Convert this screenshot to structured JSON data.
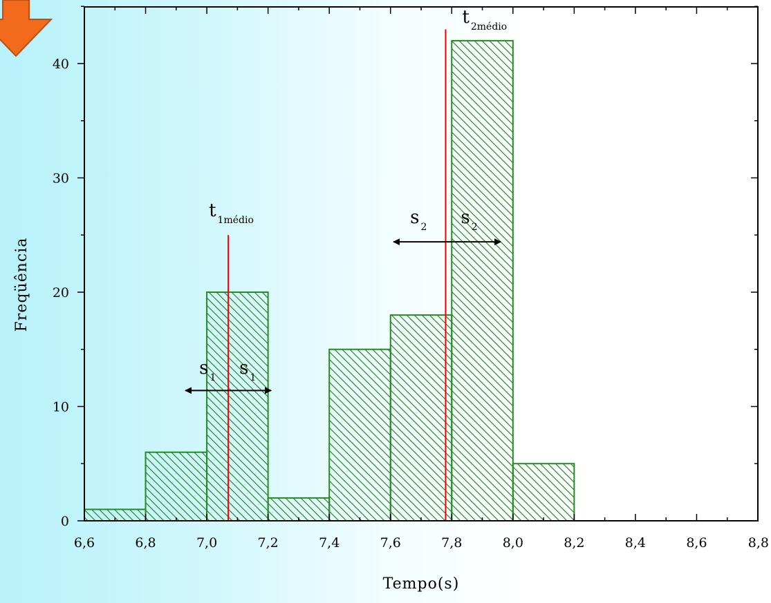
{
  "chart_data": {
    "type": "bar",
    "xlabel": "Tempo(s)",
    "ylabel": "Freqüência",
    "xlim": [
      6.6,
      8.8
    ],
    "ylim": [
      0,
      46
    ],
    "xticks": [
      "6,6",
      "6,8",
      "7,0",
      "7,2",
      "7,4",
      "7,6",
      "7,8",
      "8,0",
      "8,2",
      "8,4",
      "8,6",
      "8,8"
    ],
    "yticks": [
      "0",
      "10",
      "20",
      "30",
      "40"
    ],
    "bins": [
      {
        "from": 6.6,
        "to": 6.8,
        "value": 1
      },
      {
        "from": 6.8,
        "to": 7.0,
        "value": 6
      },
      {
        "from": 7.0,
        "to": 7.2,
        "value": 20
      },
      {
        "from": 7.2,
        "to": 7.4,
        "value": 2
      },
      {
        "from": 7.4,
        "to": 7.6,
        "value": 15
      },
      {
        "from": 7.6,
        "to": 7.8,
        "value": 18
      },
      {
        "from": 7.8,
        "to": 8.0,
        "value": 42
      },
      {
        "from": 8.0,
        "to": 8.2,
        "value": 5
      }
    ],
    "bar_color": "#228b22",
    "fill_pattern": "diagonal-hatch",
    "grid": false,
    "mean_lines": [
      {
        "x": 7.07,
        "top": 25,
        "color": "#ff0000",
        "label_main": "t",
        "label_sub": "1médio"
      },
      {
        "x": 7.78,
        "top": 43,
        "color": "#ff0000",
        "label_main": "t",
        "label_sub": "2médio"
      }
    ],
    "spread_arrows": [
      {
        "x_from": 6.93,
        "x_to": 7.21,
        "y": 11.4,
        "label_main": "s",
        "label_sub": "1"
      },
      {
        "x_from": 7.61,
        "x_to": 7.96,
        "y": 24.4,
        "label_main": "s",
        "label_sub": "2"
      }
    ]
  },
  "decoration": {
    "corner_arrow": "down-arrow-icon",
    "corner_arrow_color": "#f26a1b",
    "corner_arrow_border": "#c44d0c"
  }
}
